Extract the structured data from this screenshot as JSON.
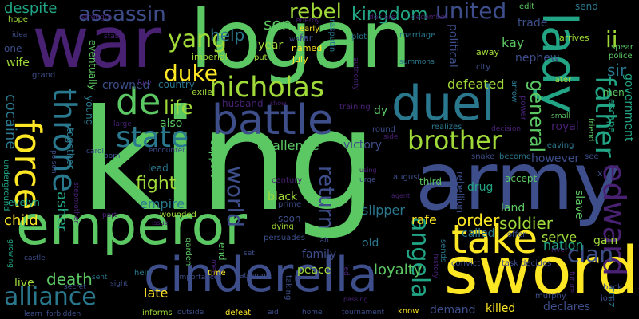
{
  "words": [
    {
      "text": "king",
      "color": "#5cc863"
    },
    {
      "text": "army",
      "color": "#3d4e8a"
    },
    {
      "text": "logan",
      "color": "#5cc863"
    },
    {
      "text": "war",
      "color": "#482173"
    },
    {
      "text": "emperor",
      "color": "#5cc863"
    },
    {
      "text": "sword",
      "color": "#fde725"
    },
    {
      "text": "cinderella",
      "color": "#3d4e8a"
    },
    {
      "text": "duel",
      "color": "#2a788e"
    },
    {
      "text": "battle",
      "color": "#3d4e8a"
    },
    {
      "text": "lady",
      "color": "#21a585"
    },
    {
      "text": "force",
      "color": "#fde725"
    },
    {
      "text": "take",
      "color": "#fde725"
    },
    {
      "text": "throne",
      "color": "#2a788e"
    },
    {
      "text": "de",
      "color": "#5cc863"
    },
    {
      "text": "edward",
      "color": "#482173"
    },
    {
      "text": "nicholas",
      "color": "#a0da39"
    },
    {
      "text": "brother",
      "color": "#a0da39"
    },
    {
      "text": "father",
      "color": "#21a585"
    },
    {
      "text": "state",
      "color": "#2a788e"
    },
    {
      "text": "alliance",
      "color": "#2a788e"
    },
    {
      "text": "rebel",
      "color": "#a0da39"
    },
    {
      "text": "kingdom",
      "color": "#21a585"
    },
    {
      "text": "united",
      "color": "#3d4e8a"
    },
    {
      "text": "assassin",
      "color": "#3d4e8a"
    },
    {
      "text": "yang",
      "color": "#a0da39"
    },
    {
      "text": "duke",
      "color": "#fde725"
    },
    {
      "text": "son",
      "color": "#5cc863"
    },
    {
      "text": "angela",
      "color": "#21a585"
    },
    {
      "text": "clan",
      "color": "#3d4e8a"
    },
    {
      "text": "world",
      "color": "#3d4e8a"
    },
    {
      "text": "return",
      "color": "#3d4e8a"
    },
    {
      "text": "fight",
      "color": "#a0da39"
    },
    {
      "text": "death",
      "color": "#5cc863"
    },
    {
      "text": "soldier",
      "color": "#a0da39"
    },
    {
      "text": "order",
      "color": "#fde725"
    },
    {
      "text": "general",
      "color": "#5cc863"
    },
    {
      "text": "ii",
      "color": "#a0da39"
    },
    {
      "text": "life",
      "color": "#a0da39"
    },
    {
      "text": "help",
      "color": "#2a788e"
    },
    {
      "text": "sir",
      "color": "#2a788e"
    },
    {
      "text": "kay",
      "color": "#5cc863"
    },
    {
      "text": "defeated",
      "color": "#a0da39"
    },
    {
      "text": "despite",
      "color": "#21a585"
    },
    {
      "text": "cocaine",
      "color": "#2a788e"
    },
    {
      "text": "asher",
      "color": "#21a585"
    },
    {
      "text": "child",
      "color": "#fde725"
    },
    {
      "text": "empire",
      "color": "#2a788e"
    },
    {
      "text": "challenge",
      "color": "#5cc863"
    },
    {
      "text": "victory",
      "color": "#3d4e8a"
    },
    {
      "text": "slipper",
      "color": "#2a788e"
    },
    {
      "text": "rafe",
      "color": "#fde725"
    },
    {
      "text": "serve",
      "color": "#a0da39"
    },
    {
      "text": "loyalty",
      "color": "#5cc863"
    },
    {
      "text": "killed",
      "color": "#fde725"
    },
    {
      "text": "demand",
      "color": "#3d4e8a"
    },
    {
      "text": "declares",
      "color": "#3d4e8a"
    },
    {
      "text": "nation",
      "color": "#21a585"
    },
    {
      "text": "called",
      "color": "#2a788e"
    },
    {
      "text": "gain",
      "color": "#a0da39"
    },
    {
      "text": "land",
      "color": "#5cc863"
    },
    {
      "text": "peace",
      "color": "#a0da39"
    },
    {
      "text": "family",
      "color": "#3d4e8a"
    },
    {
      "text": "late",
      "color": "#fde725"
    },
    {
      "text": "live",
      "color": "#a0da39"
    },
    {
      "text": "soon",
      "color": "#3d4e8a"
    },
    {
      "text": "old",
      "color": "#2a788e"
    },
    {
      "text": "black",
      "color": "#a0da39"
    },
    {
      "text": "slave",
      "color": "#5cc863"
    },
    {
      "text": "drug",
      "color": "#21a585"
    },
    {
      "text": "also",
      "color": "#5cc863"
    },
    {
      "text": "crowned",
      "color": "#3d4e8a"
    },
    {
      "text": "country",
      "color": "#2a788e"
    },
    {
      "text": "year",
      "color": "#a0da39"
    },
    {
      "text": "trade",
      "color": "#3d4e8a"
    },
    {
      "text": "nephew",
      "color": "#3d4e8a"
    },
    {
      "text": "royal",
      "color": "#482173"
    },
    {
      "text": "however",
      "color": "#3d4e8a"
    },
    {
      "text": "men",
      "color": "#5cc863"
    },
    {
      "text": "government",
      "color": "#21a585"
    },
    {
      "text": "escape",
      "color": "#21a585"
    },
    {
      "text": "husband",
      "color": "#482173"
    },
    {
      "text": "wife",
      "color": "#a0da39"
    },
    {
      "text": "one",
      "color": "#3d4e8a"
    },
    {
      "text": "lead",
      "color": "#2a788e"
    },
    {
      "text": "evelyn",
      "color": "#21a585"
    },
    {
      "text": "eventually",
      "color": "#5cc863"
    },
    {
      "text": "political",
      "color": "#3d4e8a"
    },
    {
      "text": "cruz",
      "color": "#2a788e"
    },
    {
      "text": "dy",
      "color": "#5cc863"
    },
    {
      "text": "support",
      "color": "#5cc863"
    },
    {
      "text": "go",
      "color": "#5cc863"
    },
    {
      "text": "end",
      "color": "#5cc863"
    },
    {
      "text": "far",
      "color": "#3d4e8a"
    },
    {
      "text": "young",
      "color": "#2a788e"
    },
    {
      "text": "together",
      "color": "#2a788e"
    },
    {
      "text": "underground",
      "color": "#21a585"
    },
    {
      "text": "rebellion",
      "color": "#3d4e8a"
    },
    {
      "text": "accept",
      "color": "#5cc863"
    },
    {
      "text": "third",
      "color": "#5cc863"
    },
    {
      "text": "wounded",
      "color": "#a0da39"
    },
    {
      "text": "arrives",
      "color": "#a0da39"
    },
    {
      "text": "spear",
      "color": "#5cc863"
    },
    {
      "text": "police",
      "color": "#5cc863"
    },
    {
      "text": "friend",
      "color": "#5cc863"
    },
    {
      "text": "leaving",
      "color": "#2a788e"
    },
    {
      "text": "see",
      "color": "#3d4e8a"
    },
    {
      "text": "offer",
      "color": "#3d4e8a"
    },
    {
      "text": "task",
      "color": "#3d4e8a"
    },
    {
      "text": "decides",
      "color": "#3d4e8a"
    },
    {
      "text": "convict",
      "color": "#3d4e8a"
    },
    {
      "text": "join",
      "color": "#3d4e8a"
    },
    {
      "text": "back",
      "color": "#3d4e8a"
    },
    {
      "text": "murphy",
      "color": "#3d4e8a"
    },
    {
      "text": "later",
      "color": "#a0da39"
    },
    {
      "text": "send",
      "color": "#2a788e"
    },
    {
      "text": "edit",
      "color": "#5cc863"
    },
    {
      "text": "away",
      "color": "#a0da39"
    },
    {
      "text": "city",
      "color": "#3d4e8a"
    },
    {
      "text": "arrow",
      "color": "#2a788e"
    },
    {
      "text": "small",
      "color": "#5cc863"
    },
    {
      "text": "power",
      "color": "#482173"
    },
    {
      "text": "imperial",
      "color": "#a0da39"
    },
    {
      "text": "named",
      "color": "#fde725"
    },
    {
      "text": "july",
      "color": "#fde725"
    },
    {
      "text": "put",
      "color": "#a0da39"
    },
    {
      "text": "rasputin",
      "color": "#2a788e"
    },
    {
      "text": "plot",
      "color": "#2a788e"
    },
    {
      "text": "marriage",
      "color": "#2a788e"
    },
    {
      "text": "summons",
      "color": "#2a788e"
    },
    {
      "text": "want",
      "color": "#3d4e8a"
    },
    {
      "text": "early",
      "color": "#fde725"
    },
    {
      "text": "enemy",
      "color": "#482173"
    },
    {
      "text": "exile",
      "color": "#a0da39"
    },
    {
      "text": "fury",
      "color": "#482173"
    },
    {
      "text": "training",
      "color": "#482173"
    },
    {
      "text": "round",
      "color": "#3d4e8a"
    },
    {
      "text": "side",
      "color": "#482173"
    },
    {
      "text": "realizes",
      "color": "#2a788e"
    },
    {
      "text": "snake",
      "color": "#3d4e8a"
    },
    {
      "text": "become",
      "color": "#2a788e"
    },
    {
      "text": "decision",
      "color": "#482173"
    },
    {
      "text": "august",
      "color": "#3d4e8a"
    },
    {
      "text": "urge",
      "color": "#3d4e8a"
    },
    {
      "text": "using",
      "color": "#482173"
    },
    {
      "text": "century",
      "color": "#482173"
    },
    {
      "text": "prime",
      "color": "#3d4e8a"
    },
    {
      "text": "dying",
      "color": "#a0da39"
    },
    {
      "text": "persuades",
      "color": "#3d4e8a"
    },
    {
      "text": "attempt",
      "color": "#3d4e8a"
    },
    {
      "text": "time",
      "color": "#fde725"
    },
    {
      "text": "defeat",
      "color": "#fde725"
    },
    {
      "text": "informs",
      "color": "#a0da39"
    },
    {
      "text": "outside",
      "color": "#3d4e8a"
    },
    {
      "text": "aid",
      "color": "#3d4e8a"
    },
    {
      "text": "home",
      "color": "#3d4e8a"
    },
    {
      "text": "tournament",
      "color": "#3d4e8a"
    },
    {
      "text": "know",
      "color": "#fde725"
    },
    {
      "text": "taking",
      "color": "#3d4e8a"
    },
    {
      "text": "lab",
      "color": "#3d4e8a"
    },
    {
      "text": "history",
      "color": "#482173"
    },
    {
      "text": "sends",
      "color": "#2a788e"
    },
    {
      "text": "led",
      "color": "#482173"
    },
    {
      "text": "set",
      "color": "#3d4e8a"
    },
    {
      "text": "garden",
      "color": "#5cc863"
    },
    {
      "text": "meet",
      "color": "#482173"
    },
    {
      "text": "importance",
      "color": "#3d4e8a"
    },
    {
      "text": "heir",
      "color": "#2a788e"
    },
    {
      "text": "issue",
      "color": "#482173"
    },
    {
      "text": "part",
      "color": "#482173"
    },
    {
      "text": "stepmother",
      "color": "#482173"
    },
    {
      "text": "poison",
      "color": "#3d4e8a"
    },
    {
      "text": "carol",
      "color": "#3d4e8a"
    },
    {
      "text": "born",
      "color": "#3d4e8a"
    },
    {
      "text": "encounter",
      "color": "#3d4e8a"
    },
    {
      "text": "large",
      "color": "#482173"
    },
    {
      "text": "show",
      "color": "#482173"
    },
    {
      "text": "growing",
      "color": "#21a585"
    },
    {
      "text": "castle",
      "color": "#3d4e8a"
    },
    {
      "text": "secret",
      "color": "#3d4e8a"
    },
    {
      "text": "sight",
      "color": "#3d4e8a"
    },
    {
      "text": "sent",
      "color": "#2a788e"
    },
    {
      "text": "grand",
      "color": "#3d4e8a"
    },
    {
      "text": "learn",
      "color": "#3d4e8a"
    },
    {
      "text": "forbidden",
      "color": "#3d4e8a"
    },
    {
      "text": "hope",
      "color": "#a0da39"
    },
    {
      "text": "idea",
      "color": "#3d4e8a"
    },
    {
      "text": "strength",
      "color": "#482173"
    },
    {
      "text": "stab",
      "color": "#482173"
    },
    {
      "text": "declare",
      "color": "#482173"
    },
    {
      "text": "december",
      "color": "#482173"
    },
    {
      "text": "future",
      "color": "#482173"
    },
    {
      "text": "river",
      "color": "#482173"
    },
    {
      "text": "x",
      "color": "#3d4e8a"
    },
    {
      "text": "authority",
      "color": "#482173"
    },
    {
      "text": "agent",
      "color": "#482173"
    },
    {
      "text": "passing",
      "color": "#482173"
    }
  ]
}
